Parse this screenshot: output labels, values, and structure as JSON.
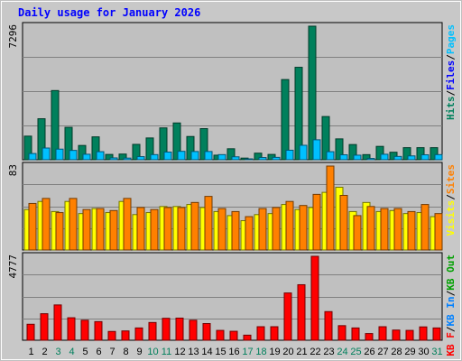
{
  "chart_data": {
    "type": "bar",
    "title": "Daily usage for January 2026",
    "categories": [
      "1",
      "2",
      "3",
      "4",
      "5",
      "6",
      "7",
      "8",
      "9",
      "10",
      "11",
      "12",
      "13",
      "14",
      "15",
      "16",
      "17",
      "18",
      "19",
      "20",
      "21",
      "22",
      "23",
      "24",
      "25",
      "26",
      "27",
      "28",
      "29",
      "30",
      "31"
    ],
    "weekend_categories": [
      "3",
      "4",
      "10",
      "11",
      "17",
      "18",
      "24",
      "25",
      "31"
    ],
    "grid": true,
    "legend_position": "right",
    "panels": [
      {
        "axis_max_label": "7296",
        "ylim": [
          0,
          7296
        ],
        "legend": [
          {
            "text": "Hits",
            "color": "#00805c"
          },
          {
            "text": "Files",
            "color": "#0000ff"
          },
          {
            "text": "Pages",
            "color": "#00c0ff"
          }
        ],
        "series": [
          {
            "name": "Hits",
            "color": "#00805c",
            "values": [
              1290,
              2240,
              3780,
              1770,
              780,
              1250,
              290,
              310,
              840,
              1190,
              1740,
              2010,
              1270,
              1700,
              250,
              600,
              90,
              360,
              290,
              4380,
              5050,
              7296,
              2360,
              1140,
              830,
              280,
              730,
              410,
              660,
              660,
              660
            ]
          },
          {
            "name": "Pages",
            "color": "#00c0ff",
            "values": [
              340,
              640,
              580,
              510,
              300,
              440,
              100,
              90,
              170,
              280,
              420,
              460,
              450,
              450,
              280,
              160,
              30,
              120,
              130,
              520,
              790,
              1090,
              440,
              270,
              250,
              70,
              300,
              180,
              210,
              270,
              280
            ]
          }
        ]
      },
      {
        "axis_max_label": "83",
        "ylim": [
          0,
          83
        ],
        "legend": [
          {
            "text": "Visits",
            "color": "#ffff00"
          },
          {
            "text": "Sites",
            "color": "#ff8000"
          }
        ],
        "series": [
          {
            "name": "Visits",
            "color": "#ffff00",
            "values": [
              40,
              48,
              38,
              48,
              36,
              41,
              37,
              48,
              35,
              37,
              43,
              43,
              45,
              42,
              38,
              34,
              29,
              35,
              36,
              45,
              40,
              42,
              57,
              62,
              38,
              47,
              38,
              39,
              36,
              37,
              33
            ]
          },
          {
            "name": "Sites",
            "color": "#ff8000",
            "values": [
              46,
              51,
              37,
              51,
              40,
              41,
              39,
              51,
              42,
              40,
              42,
              42,
              47,
              53,
              41,
              38,
              33,
              41,
              42,
              48,
              44,
              55,
              83,
              54,
              34,
              43,
              41,
              41,
              38,
              45,
              36
            ]
          }
        ]
      },
      {
        "axis_max_label": "4777",
        "ylim": [
          0,
          4777
        ],
        "legend": [
          {
            "text": "KB F",
            "color": "#ff0000"
          },
          {
            "text": "KB In",
            "color": "#0080ff"
          },
          {
            "text": "KB Out",
            "color": "#00a000"
          }
        ],
        "series": [
          {
            "name": "KB F",
            "color": "#ff0000",
            "values": [
              910,
              1510,
              2010,
              1280,
              1140,
              1060,
              500,
              530,
              700,
              1010,
              1250,
              1260,
              1140,
              950,
              560,
              510,
              290,
              770,
              770,
              2690,
              3160,
              4777,
              1630,
              830,
              700,
              380,
              770,
              580,
              560,
              760,
              700
            ]
          }
        ]
      }
    ]
  }
}
